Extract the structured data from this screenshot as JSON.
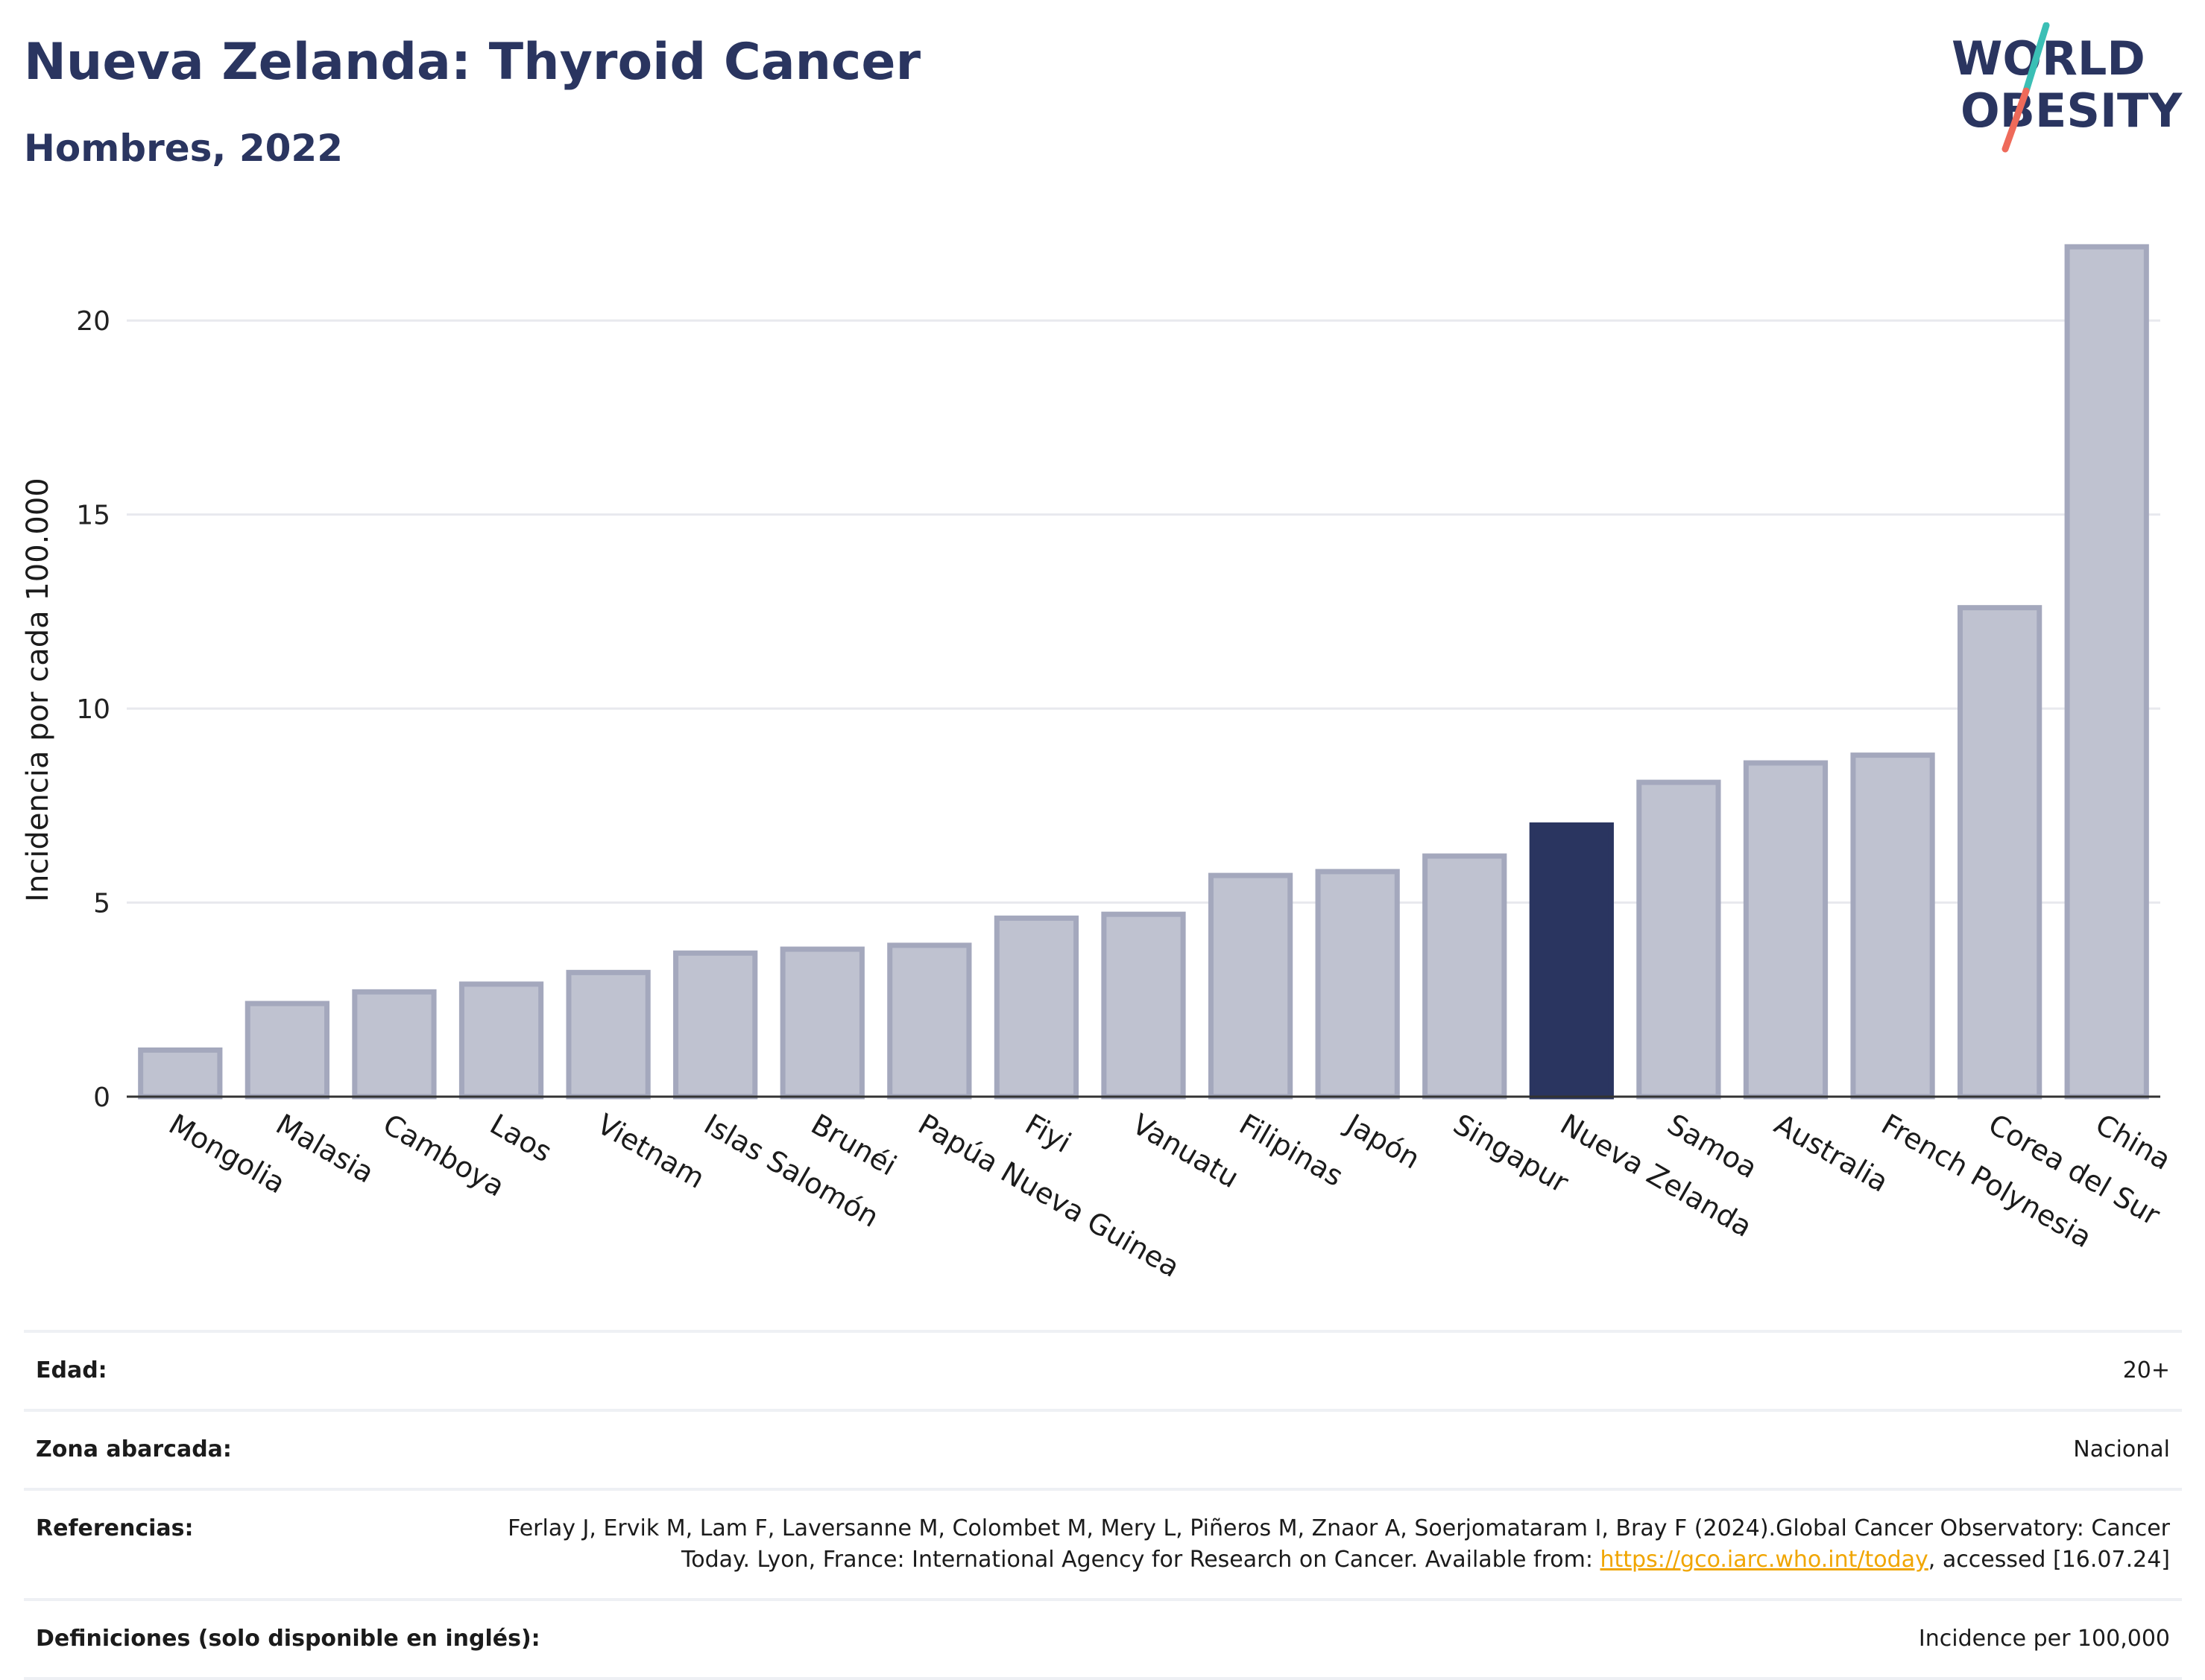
{
  "header": {
    "title": "Nueva Zelanda: Thyroid Cancer",
    "subtitle": "Hombres, 2022"
  },
  "logo": {
    "line1": "WORLD",
    "line2": "OBESITY"
  },
  "colors": {
    "highlight": "#2a3560",
    "bar_fill": "#bfc2d0",
    "bar_stroke": "#a4a8bd",
    "grid": "#e8e9ee",
    "logo_teal": "#3bbfb5",
    "logo_coral": "#ee6a5a"
  },
  "chart_data": {
    "type": "bar",
    "title": "",
    "ylabel": "Incidencia por cada 100.000",
    "xlabel": "",
    "ylim": [
      0,
      22.5
    ],
    "yticks": [
      0,
      5,
      10,
      15,
      20
    ],
    "grid": true,
    "highlight": "Nueva Zelanda",
    "categories": [
      "Mongolia",
      "Malasia",
      "Camboya",
      "Laos",
      "Vietnam",
      "Islas Salomón",
      "Brunéi",
      "Papúa Nueva Guinea",
      "Fiyi",
      "Vanuatu",
      "Filipinas",
      "Japón",
      "Singapur",
      "Nueva Zelanda",
      "Samoa",
      "Australia",
      "French Polynesia",
      "Corea del Sur",
      "China"
    ],
    "values": [
      1.2,
      2.4,
      2.7,
      2.9,
      3.2,
      3.7,
      3.8,
      3.9,
      4.6,
      4.7,
      5.7,
      5.8,
      6.2,
      7.0,
      8.1,
      8.6,
      8.8,
      12.6,
      21.9
    ]
  },
  "info": {
    "edad_label": "Edad:",
    "edad_value": "20+",
    "zona_label": "Zona abarcada:",
    "zona_value": "Nacional",
    "ref_label": "Referencias:",
    "ref_text_1": "Ferlay J, Ervik M, Lam F, Laversanne M, Colombet M, Mery L, Piñeros M, Znaor A, Soerjomataram I, Bray F (2024).Global Cancer Observatory: Cancer Today. Lyon, France: International Agency for Research on Cancer. Available from: ",
    "ref_link": "https://gco.iarc.who.int/today",
    "ref_text_2": ", accessed [16.07.24]",
    "def_label": "Definiciones (solo disponible en inglés):",
    "def_value": "Incidence per 100,000"
  }
}
